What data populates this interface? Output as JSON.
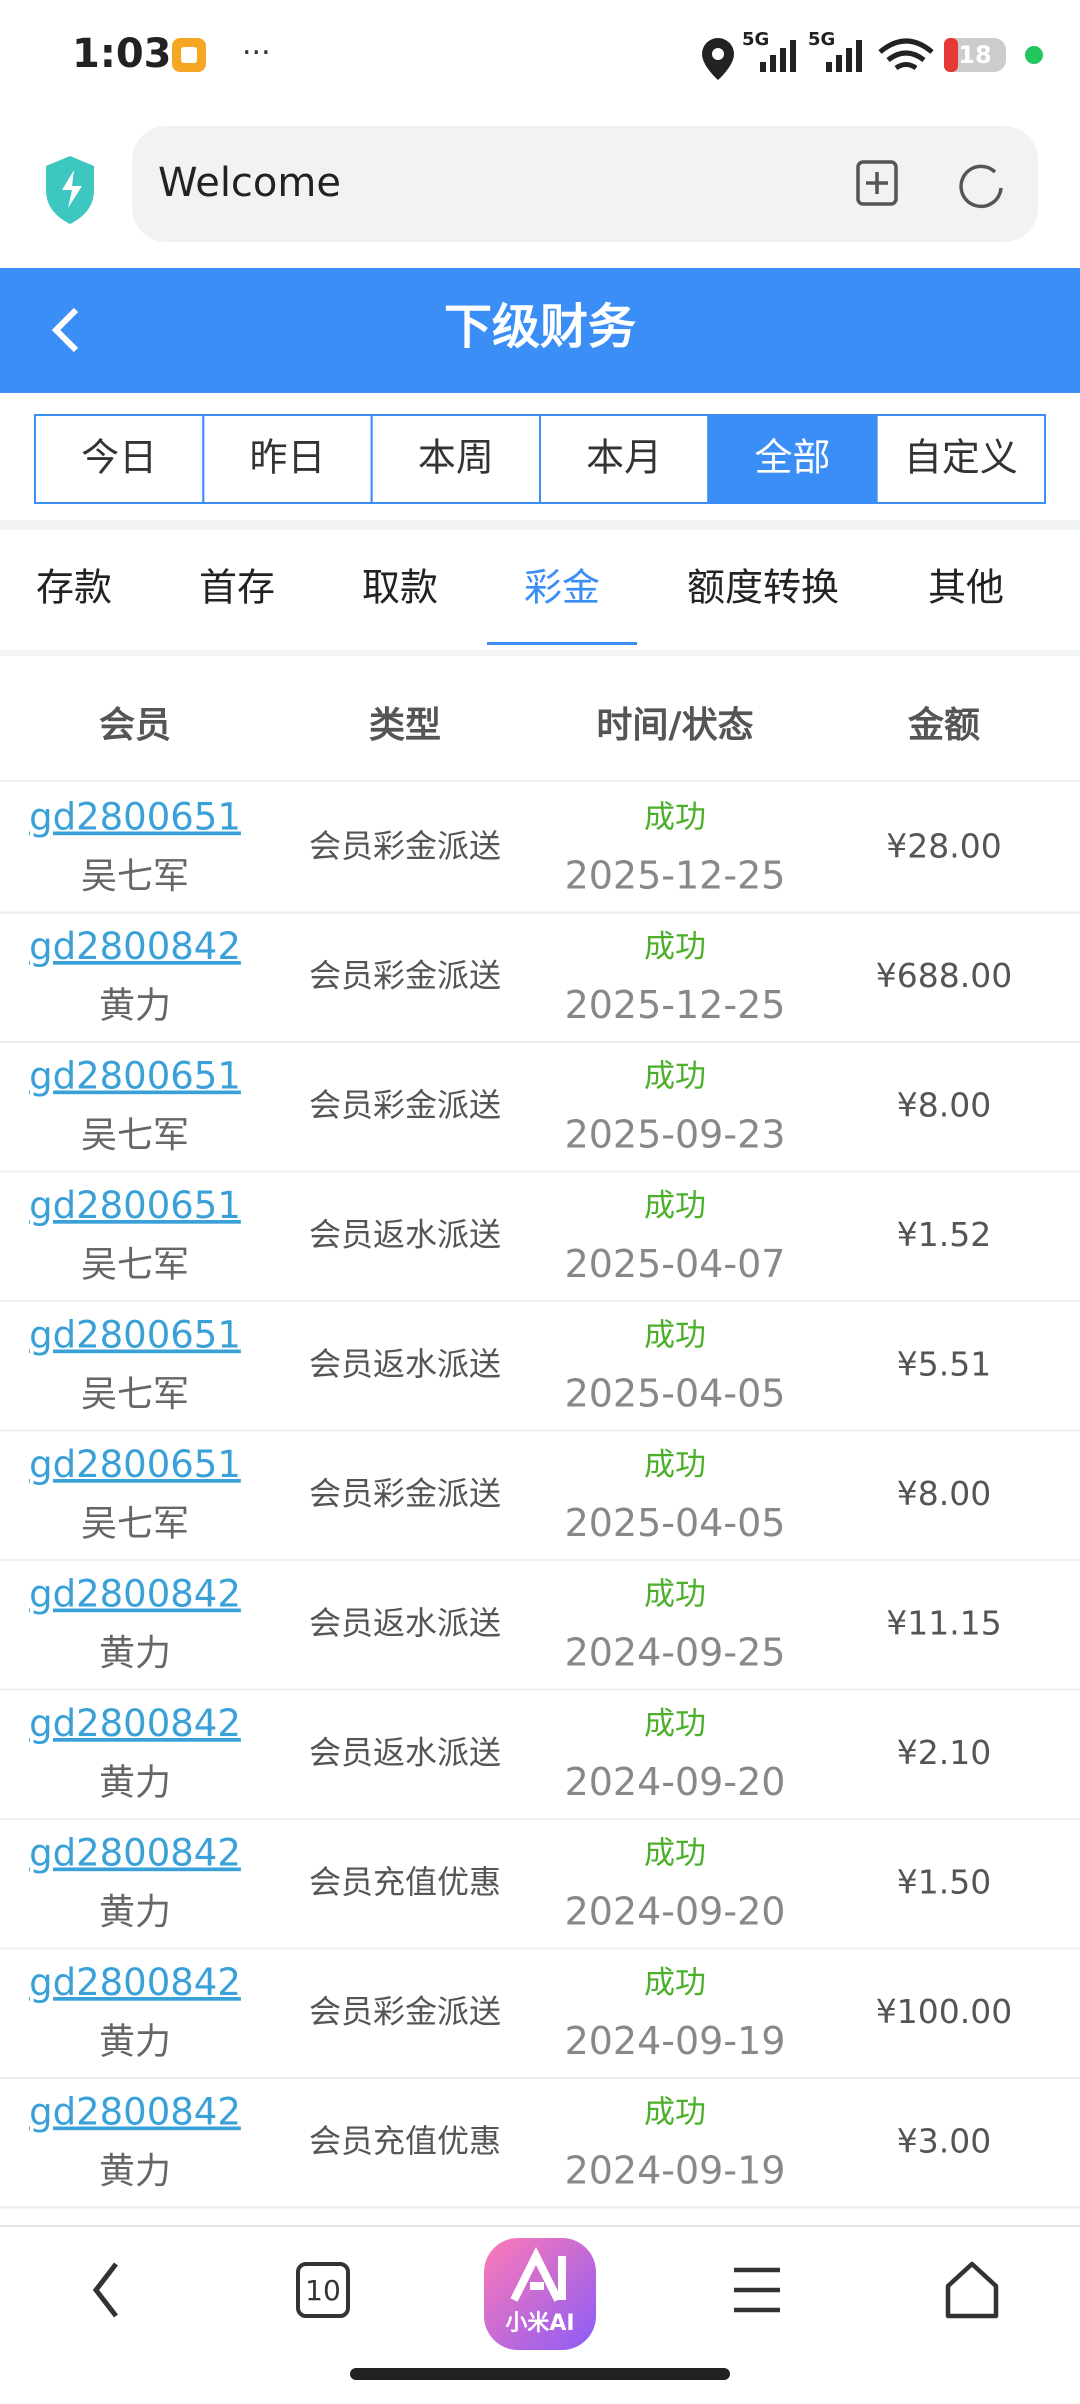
{
  "status_bar": {
    "time": "1:03",
    "network": [
      "5G",
      "5G"
    ],
    "battery": "18"
  },
  "browser": {
    "url": "Welcome"
  },
  "header": {
    "title": "下级财务"
  },
  "date_tabs": {
    "items": [
      "今日",
      "昨日",
      "本周",
      "本月",
      "全部",
      "自定义"
    ],
    "selected": 4
  },
  "category_tabs": {
    "items": [
      "存款",
      "首存",
      "取款",
      "彩金",
      "额度转换",
      "其他"
    ],
    "selected": 3
  },
  "table": {
    "columns": [
      "会员",
      "类型",
      "时间/状态",
      "金额"
    ],
    "rows": [
      [
        "gd2800651",
        "吴七军",
        "会员彩金派送",
        "成功",
        "2025-12-25",
        "¥28.00"
      ],
      [
        "gd2800842",
        "黄力",
        "会员彩金派送",
        "成功",
        "2025-12-25",
        "¥688.00"
      ],
      [
        "gd2800651",
        "吴七军",
        "会员彩金派送",
        "成功",
        "2025-09-23",
        "¥8.00"
      ],
      [
        "gd2800651",
        "吴七军",
        "会员返水派送",
        "成功",
        "2025-04-07",
        "¥1.52"
      ],
      [
        "gd2800651",
        "吴七军",
        "会员返水派送",
        "成功",
        "2025-04-05",
        "¥5.51"
      ],
      [
        "gd2800651",
        "吴七军",
        "会员彩金派送",
        "成功",
        "2025-04-05",
        "¥8.00"
      ],
      [
        "gd2800842",
        "黄力",
        "会员返水派送",
        "成功",
        "2024-09-25",
        "¥11.15"
      ],
      [
        "gd2800842",
        "黄力",
        "会员返水派送",
        "成功",
        "2024-09-20",
        "¥2.10"
      ],
      [
        "gd2800842",
        "黄力",
        "会员充值优惠",
        "成功",
        "2024-09-20",
        "¥1.50"
      ],
      [
        "gd2800842",
        "黄力",
        "会员彩金派送",
        "成功",
        "2024-09-19",
        "¥100.00"
      ],
      [
        "gd2800842",
        "黄力",
        "会员充值优惠",
        "成功",
        "2024-09-19",
        "¥3.00"
      ]
    ]
  },
  "bottom_bar": {
    "tab_count": "10",
    "ai_label": "小米AI"
  }
}
